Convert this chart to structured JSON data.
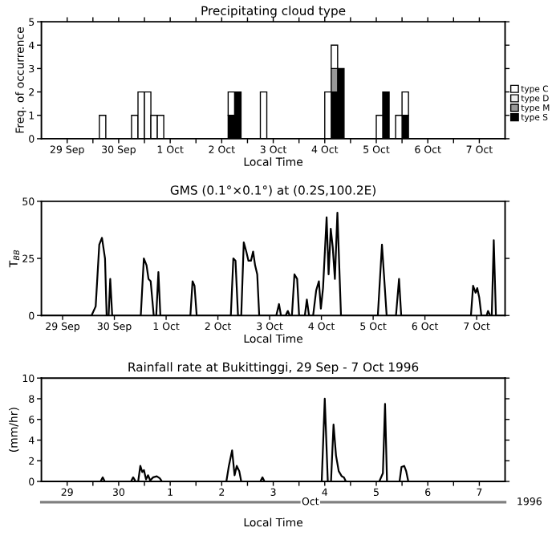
{
  "chart_data": [
    {
      "type": "bar",
      "title": "Precipitating cloud type",
      "xlabel": "Local Time",
      "ylabel": "Freq. of occurrence",
      "stacked": true,
      "legend": "right",
      "grid": false,
      "x": [
        "1996-09-30T04:30",
        "1996-09-30T19:30",
        "1996-09-30T22:30",
        "1996-10-01T01:30",
        "1996-10-01T04:30",
        "1996-10-01T07:30",
        "1996-10-02T16:30",
        "1996-10-02T19:30",
        "1996-10-03T07:30",
        "1996-10-04T13:30",
        "1996-10-04T16:30",
        "1996-10-04T19:30",
        "1996-10-05T13:30",
        "1996-10-05T16:30",
        "1996-10-05T22:30",
        "1996-10-06T01:30"
      ],
      "series": [
        {
          "name": "type S",
          "color": "#000000",
          "values": [
            0,
            0,
            0,
            0,
            0,
            0,
            1,
            2,
            0,
            0,
            2,
            3,
            0,
            2,
            0,
            1
          ]
        },
        {
          "name": "type M",
          "color": "#999999",
          "values": [
            0,
            0,
            0,
            0,
            0,
            0,
            0,
            0,
            0,
            0,
            1,
            0,
            0,
            0,
            0,
            0
          ]
        },
        {
          "name": "type D",
          "color": "#eeeeee",
          "values": [
            0,
            0,
            0,
            0,
            0,
            0,
            0,
            0,
            0,
            0,
            0,
            0,
            0,
            0,
            0,
            0
          ]
        },
        {
          "name": "type C",
          "color": "#ffffff",
          "values": [
            1,
            1,
            2,
            2,
            1,
            1,
            1,
            0,
            2,
            2,
            1,
            0,
            1,
            0,
            1,
            1
          ]
        }
      ],
      "xlim": [
        "1996-09-29T00:00",
        "1996-10-08T00:00"
      ],
      "ylim": [
        0,
        5
      ],
      "yticks": [
        0,
        1,
        2,
        3,
        4,
        5
      ],
      "xticks": [
        {
          "value": "1996-09-29T12:00",
          "label": "29 Sep"
        },
        {
          "value": "1996-09-30T00:00",
          "label": null
        },
        {
          "value": "1996-09-30T12:00",
          "label": "30 Sep"
        },
        {
          "value": "1996-10-01T00:00",
          "label": null
        },
        {
          "value": "1996-10-01T12:00",
          "label": "1 Oct"
        },
        {
          "value": "1996-10-02T00:00",
          "label": null
        },
        {
          "value": "1996-10-02T12:00",
          "label": "2 Oct"
        },
        {
          "value": "1996-10-03T00:00",
          "label": null
        },
        {
          "value": "1996-10-03T12:00",
          "label": "3 Oct"
        },
        {
          "value": "1996-10-04T00:00",
          "label": null
        },
        {
          "value": "1996-10-04T12:00",
          "label": "4 Oct"
        },
        {
          "value": "1996-10-05T00:00",
          "label": null
        },
        {
          "value": "1996-10-05T12:00",
          "label": "5 Oct"
        },
        {
          "value": "1996-10-06T00:00",
          "label": null
        },
        {
          "value": "1996-10-06T12:00",
          "label": "6 Oct"
        },
        {
          "value": "1996-10-07T00:00",
          "label": null
        },
        {
          "value": "1996-10-07T12:00",
          "label": "7 Oct"
        }
      ]
    },
    {
      "type": "line",
      "title": "GMS (0.1°×0.1°) at (0.2S,100.2E)",
      "xlabel": "Local Time",
      "ylabel": "T$_{BB}$",
      "grid": false,
      "series": [
        {
          "color": "#000000",
          "x": [
            "1996-09-29T02:10",
            "1996-09-30T01:25",
            "1996-09-30T03:20",
            "1996-09-30T05:00",
            "1996-09-30T06:15",
            "1996-09-30T07:40",
            "1996-09-30T08:25",
            "1996-09-30T09:20",
            "1996-09-30T10:05",
            "1996-09-30T11:00",
            "1996-10-01T00:15",
            "1996-10-01T01:40",
            "1996-10-01T02:55",
            "1996-10-01T03:50",
            "1996-10-01T04:50",
            "1996-10-01T06:15",
            "1996-10-01T07:25",
            "1996-10-01T08:25",
            "1996-10-01T09:20",
            "1996-10-01T23:15",
            "1996-10-02T00:15",
            "1996-10-02T01:10",
            "1996-10-02T02:10",
            "1996-10-02T18:00",
            "1996-10-02T19:10",
            "1996-10-02T20:10",
            "1996-10-02T21:20",
            "1996-10-02T22:50",
            "1996-10-03T00:00",
            "1996-10-03T01:10",
            "1996-10-03T02:10",
            "1996-10-03T03:20",
            "1996-10-03T04:20",
            "1996-10-03T05:15",
            "1996-10-03T06:15",
            "1996-10-03T07:10",
            "1996-10-03T15:05",
            "1996-10-03T16:20",
            "1996-10-03T17:15",
            "1996-10-03T19:25",
            "1996-10-03T20:25",
            "1996-10-03T21:20",
            "1996-10-03T22:20",
            "1996-10-03T23:30",
            "1996-10-04T00:45",
            "1996-10-04T01:40",
            "1996-10-04T04:20",
            "1996-10-04T05:15",
            "1996-10-04T06:15",
            "1996-10-04T08:10",
            "1996-10-04T09:35",
            "1996-10-04T10:50",
            "1996-10-04T11:45",
            "1996-10-04T12:45",
            "1996-10-04T14:25",
            "1996-10-04T15:20",
            "1996-10-04T16:20",
            "1996-10-04T17:15",
            "1996-10-04T18:15",
            "1996-10-04T19:25",
            "1996-10-04T21:05",
            "1996-10-05T14:10",
            "1996-10-05T16:05",
            "1996-10-05T17:00",
            "1996-10-05T18:15",
            "1996-10-05T22:35",
            "1996-10-06T00:00",
            "1996-10-06T01:00",
            "1996-10-07T09:20",
            "1996-10-07T10:20",
            "1996-10-07T11:30",
            "1996-10-07T12:15",
            "1996-10-07T13:10",
            "1996-10-07T14:10",
            "1996-10-07T16:35",
            "1996-10-07T17:15",
            "1996-10-07T18:15",
            "1996-10-07T19:00",
            "1996-10-07T19:55",
            "1996-10-07T20:55",
            "1996-10-08T01:10"
          ],
          "values": [
            0,
            0,
            4,
            31,
            34,
            25,
            0,
            0,
            16,
            0,
            0,
            25,
            22,
            16,
            15,
            0,
            0,
            19,
            0,
            0,
            15,
            13,
            0,
            0,
            25,
            24,
            0,
            0,
            32,
            28,
            24,
            24,
            28,
            22,
            18,
            0,
            0,
            5,
            0,
            0,
            2,
            0,
            0,
            18,
            16,
            0,
            0,
            7,
            0,
            0,
            11,
            15,
            3,
            12,
            43,
            18,
            38,
            30,
            16,
            45,
            0,
            0,
            31,
            18,
            0,
            0,
            16,
            0,
            0,
            13,
            10,
            12,
            8,
            0,
            0,
            2,
            0,
            0,
            33,
            0,
            0
          ]
        }
      ],
      "xlim": [
        "1996-09-29T02:10",
        "1996-10-08T01:10"
      ],
      "ylim": [
        0,
        50
      ],
      "yticks": [
        0,
        25,
        50
      ],
      "xticks": [
        {
          "value": "1996-09-29T12:00",
          "label": "29 Sep"
        },
        {
          "value": "1996-09-30T12:00",
          "label": "30 Sep"
        },
        {
          "value": "1996-10-01T12:00",
          "label": "1 Oct"
        },
        {
          "value": "1996-10-02T12:00",
          "label": "2 Oct"
        },
        {
          "value": "1996-10-03T12:00",
          "label": "3 Oct"
        },
        {
          "value": "1996-10-04T12:00",
          "label": "4 Oct"
        },
        {
          "value": "1996-10-05T12:00",
          "label": "5 Oct"
        },
        {
          "value": "1996-10-06T12:00",
          "label": "6 Oct"
        },
        {
          "value": "1996-10-07T12:00",
          "label": "7 Oct"
        }
      ]
    },
    {
      "type": "line",
      "title": "Rainfall rate at Bukittinggi, 29 Sep - 7 Oct 1996",
      "xlabel": "Local Time",
      "ylabel": "(mm/hr)",
      "grid": false,
      "annotations": [
        "Oct",
        "1996"
      ],
      "series": [
        {
          "color": "#000000",
          "x": [
            "1996-09-29T00:00",
            "1996-09-30T03:35",
            "1996-09-30T04:35",
            "1996-09-30T05:30",
            "1996-09-30T17:45",
            "1996-09-30T18:45",
            "1996-09-30T19:55",
            "1996-09-30T21:05",
            "1996-09-30T22:05",
            "1996-09-30T23:00",
            "1996-09-30T23:45",
            "1996-10-01T00:45",
            "1996-10-01T01:40",
            "1996-10-01T02:40",
            "1996-10-01T04:05",
            "1996-10-01T05:45",
            "1996-10-01T07:10",
            "1996-10-01T08:10",
            "1996-10-02T14:10",
            "1996-10-02T15:20",
            "1996-10-02T16:50",
            "1996-10-02T18:00",
            "1996-10-02T19:00",
            "1996-10-02T20:10",
            "1996-10-02T21:05",
            "1996-10-03T06:00",
            "1996-10-03T07:00",
            "1996-10-03T07:55",
            "1996-10-04T10:35",
            "1996-10-04T12:00",
            "1996-10-04T13:25",
            "1996-10-04T14:55",
            "1996-10-04T16:05",
            "1996-10-04T17:15",
            "1996-10-04T18:30",
            "1996-10-04T19:55",
            "1996-10-04T20:55",
            "1996-10-04T21:50",
            "1996-10-05T13:25",
            "1996-10-05T15:05",
            "1996-10-05T16:05",
            "1996-10-05T17:00",
            "1996-10-05T22:50",
            "1996-10-05T23:45",
            "1996-10-06T01:00",
            "1996-10-06T01:55",
            "1996-10-06T02:55",
            "1996-10-07T23:15"
          ],
          "values": [
            0,
            0,
            0.4,
            0,
            0,
            0.4,
            0,
            0,
            1.5,
            0.9,
            1.1,
            0.2,
            0.6,
            0.1,
            0.4,
            0.5,
            0.3,
            0,
            0,
            1.5,
            3.0,
            0.6,
            1.5,
            1.0,
            0,
            0,
            0.4,
            0,
            0,
            8.0,
            0,
            0,
            5.5,
            2.5,
            1.0,
            0.5,
            0.4,
            0,
            0,
            0.8,
            7.5,
            0,
            0,
            1.4,
            1.5,
            1.0,
            0,
            0
          ]
        }
      ],
      "xlim": [
        "1996-09-29T00:00",
        "1996-10-08T00:00"
      ],
      "ylim": [
        0,
        10
      ],
      "yticks": [
        0,
        2,
        4,
        6,
        8,
        10
      ],
      "xticks": [
        {
          "value": "1996-09-29T12:00",
          "label": "29"
        },
        {
          "value": "1996-09-30T00:00",
          "label": null
        },
        {
          "value": "1996-09-30T12:00",
          "label": "30"
        },
        {
          "value": "1996-10-01T00:00",
          "label": null
        },
        {
          "value": "1996-10-01T12:00",
          "label": "1"
        },
        {
          "value": "1996-10-02T00:00",
          "label": null
        },
        {
          "value": "1996-10-02T12:00",
          "label": "2"
        },
        {
          "value": "1996-10-03T00:00",
          "label": null
        },
        {
          "value": "1996-10-03T12:00",
          "label": "3"
        },
        {
          "value": "1996-10-04T00:00",
          "label": null
        },
        {
          "value": "1996-10-04T12:00",
          "label": "4"
        },
        {
          "value": "1996-10-05T00:00",
          "label": null
        },
        {
          "value": "1996-10-05T12:00",
          "label": "5"
        },
        {
          "value": "1996-10-06T00:00",
          "label": null
        },
        {
          "value": "1996-10-06T12:00",
          "label": "6"
        },
        {
          "value": "1996-10-07T00:00",
          "label": null
        },
        {
          "value": "1996-10-07T12:00",
          "label": "7"
        }
      ]
    }
  ]
}
